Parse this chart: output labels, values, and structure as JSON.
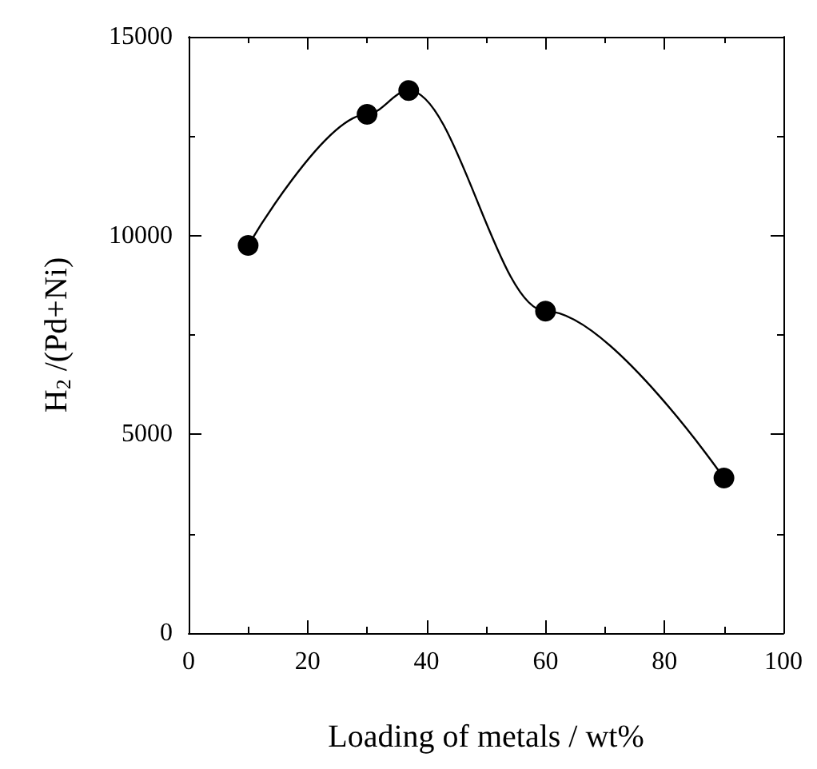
{
  "chart_data": {
    "type": "line",
    "xlabel": "Loading of metals / wt%",
    "ylabel": "H$_{2}$ /(Pd+Ni)",
    "x": [
      10,
      30,
      37,
      60,
      90
    ],
    "series": [
      {
        "color": "#000000",
        "values": [
          9750,
          13050,
          13650,
          8100,
          3900
        ]
      }
    ],
    "xlim": [
      0,
      100
    ],
    "xticks": [
      0,
      20,
      40,
      60,
      80,
      100
    ],
    "ylim": [
      0,
      15000
    ],
    "yticks": [
      0,
      5000,
      10000,
      15000
    ],
    "grid": false,
    "marker": "circle",
    "line_style": "solid"
  }
}
